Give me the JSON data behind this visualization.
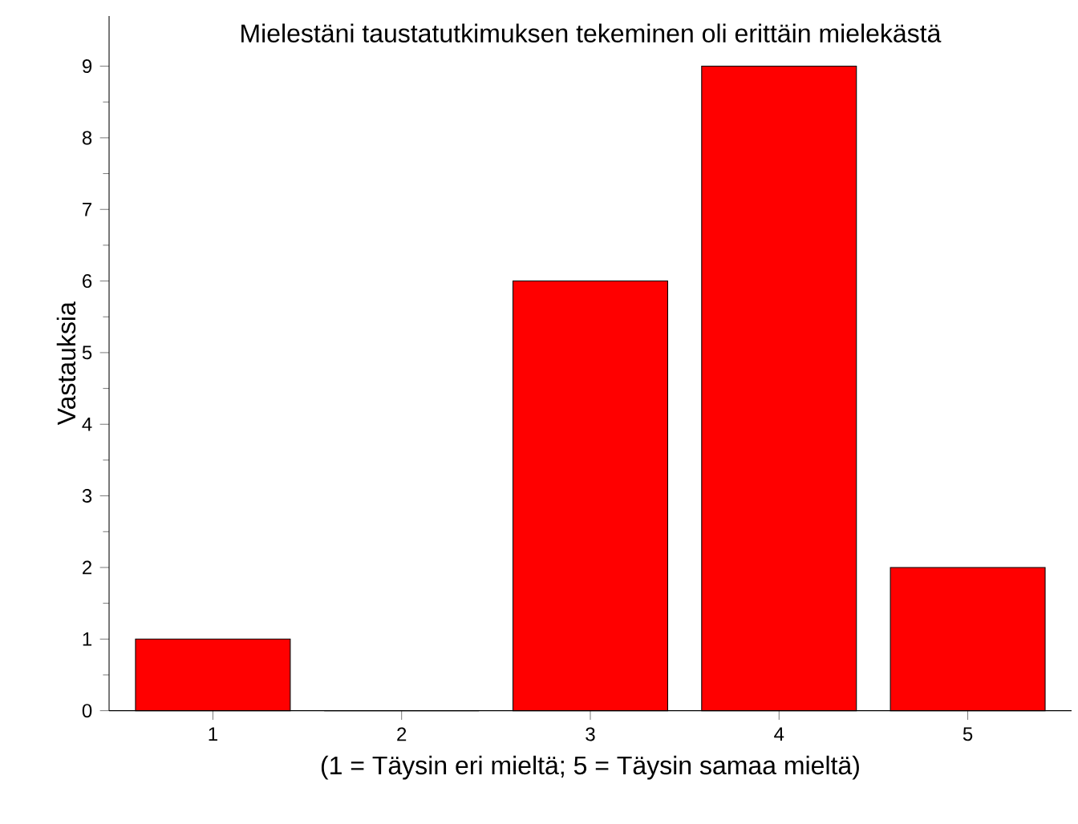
{
  "chart_data": {
    "type": "bar",
    "title": "Mielestäni taustatutkimuksen tekeminen oli erittäin mielekästä",
    "xlabel": "(1 = Täysin eri mieltä; 5 = Täysin samaa mieltä)",
    "ylabel": "Vastauksia",
    "categories": [
      "1",
      "2",
      "3",
      "4",
      "5"
    ],
    "values": [
      1,
      0,
      6,
      9,
      2
    ],
    "color": "#ff0000",
    "ylim": [
      0,
      9.7
    ],
    "yticks": [
      0,
      1,
      2,
      3,
      4,
      5,
      6,
      7,
      8,
      9
    ]
  }
}
